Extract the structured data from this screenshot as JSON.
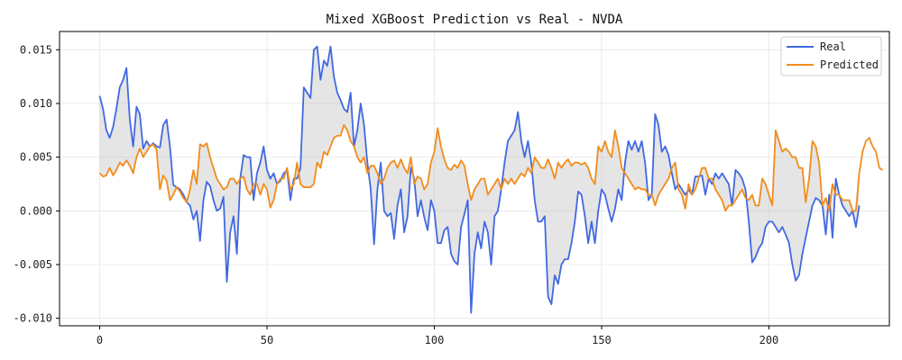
{
  "chart_data": {
    "type": "line",
    "title": "Mixed XGBoost Prediction vs Real - NVDA",
    "xlabel": "",
    "ylabel": "",
    "xlim": [
      -12,
      236
    ],
    "ylim": [
      -0.0107,
      0.0167
    ],
    "x_ticks": [
      0,
      50,
      100,
      150,
      200
    ],
    "y_ticks": [
      -0.01,
      -0.005,
      0.0,
      0.005,
      0.01,
      0.015
    ],
    "y_tick_labels": [
      "-0.010",
      "-0.005",
      "0.000",
      "0.005",
      "0.010",
      "0.015"
    ],
    "grid": true,
    "legend_position": "top-right",
    "fill_between": {
      "color": "#bdbdbd",
      "alpha": 0.4
    },
    "series": [
      {
        "name": "Real",
        "color": "#4169E1",
        "values": [
          0.0107,
          0.0095,
          0.0075,
          0.0068,
          0.0078,
          0.0095,
          0.0115,
          0.0122,
          0.0133,
          0.0085,
          0.006,
          0.0097,
          0.009,
          0.0058,
          0.0065,
          0.006,
          0.0063,
          0.006,
          0.0059,
          0.008,
          0.0085,
          0.006,
          0.0024,
          0.0022,
          0.002,
          0.0015,
          0.0008,
          0.0005,
          -0.0008,
          0.0,
          -0.0028,
          0.001,
          0.0027,
          0.0023,
          0.001,
          0.0,
          0.0002,
          0.0013,
          -0.0066,
          -0.002,
          -0.0005,
          -0.004,
          0.003,
          0.0052,
          0.005,
          0.005,
          0.001,
          0.0035,
          0.0045,
          0.006,
          0.0038,
          0.003,
          0.0035,
          0.0025,
          0.0028,
          0.0035,
          0.0038,
          0.001,
          0.003,
          0.003,
          0.004,
          0.0115,
          0.011,
          0.0105,
          0.015,
          0.0153,
          0.0122,
          0.014,
          0.0135,
          0.0153,
          0.0125,
          0.011,
          0.0103,
          0.0095,
          0.0092,
          0.011,
          0.006,
          0.0075,
          0.01,
          0.008,
          0.0045,
          0.002,
          -0.0031,
          0.002,
          0.0045,
          0.0,
          -0.0005,
          -0.0002,
          -0.0026,
          0.0005,
          0.002,
          -0.002,
          -0.0005,
          0.004,
          0.003,
          -0.0005,
          0.001,
          -0.0006,
          -0.0018,
          0.001,
          0.0,
          -0.003,
          -0.003,
          -0.0018,
          -0.0015,
          -0.004,
          -0.0047,
          -0.005,
          -0.0015,
          -0.0003,
          0.001,
          -0.0095,
          -0.004,
          -0.002,
          -0.0035,
          -0.001,
          -0.002,
          -0.005,
          -0.0005,
          0.0,
          0.002,
          0.0045,
          0.0065,
          0.007,
          0.0075,
          0.0092,
          0.0065,
          0.005,
          0.0065,
          0.0045,
          0.001,
          -0.001,
          -0.001,
          -0.0005,
          -0.008,
          -0.0087,
          -0.006,
          -0.0068,
          -0.005,
          -0.0045,
          -0.0045,
          -0.003,
          -0.001,
          0.0018,
          0.0015,
          -0.0005,
          -0.003,
          -0.001,
          -0.003,
          0.0,
          0.002,
          0.0015,
          0.0002,
          -0.001,
          0.0002,
          0.002,
          0.001,
          0.0045,
          0.0065,
          0.0057,
          0.0065,
          0.0055,
          0.0065,
          0.0045,
          0.001,
          0.0015,
          0.009,
          0.008,
          0.0055,
          0.006,
          0.0052,
          0.0035,
          0.002,
          0.0025,
          0.002,
          0.0015,
          0.002,
          0.0015,
          0.0032,
          0.0032,
          0.0033,
          0.0015,
          0.003,
          0.0025,
          0.0035,
          0.003,
          0.0035,
          0.003,
          0.0025,
          0.0005,
          0.0038,
          0.0035,
          0.003,
          0.002,
          -0.001,
          -0.0048,
          -0.0043,
          -0.0035,
          -0.003,
          -0.0015,
          -0.001,
          -0.001,
          -0.0015,
          -0.002,
          -0.0015,
          -0.0022,
          -0.003,
          -0.005,
          -0.0065,
          -0.006,
          -0.004,
          -0.0025,
          -0.001,
          0.0005,
          0.0012,
          0.001,
          0.0005,
          -0.0022,
          0.0015,
          -0.0025,
          0.003,
          0.0015,
          0.0005,
          0.0,
          -0.0005,
          0.0,
          -0.0015,
          0.0005
        ]
      },
      {
        "name": "Predicted",
        "color": "#F28C1B",
        "values": [
          0.0035,
          0.0032,
          0.0033,
          0.004,
          0.0033,
          0.0038,
          0.0045,
          0.0042,
          0.0047,
          0.0042,
          0.0035,
          0.005,
          0.0058,
          0.005,
          0.0055,
          0.006,
          0.0062,
          0.0057,
          0.002,
          0.0033,
          0.0028,
          0.001,
          0.0015,
          0.0022,
          0.0018,
          0.0012,
          0.0008,
          0.002,
          0.0038,
          0.0025,
          0.0062,
          0.006,
          0.0063,
          0.005,
          0.004,
          0.003,
          0.0025,
          0.002,
          0.0022,
          0.003,
          0.003,
          0.0025,
          0.003,
          0.0032,
          0.002,
          0.0015,
          0.0025,
          0.0025,
          0.0015,
          0.0025,
          0.002,
          0.0003,
          0.001,
          0.0025,
          0.003,
          0.003,
          0.004,
          0.002,
          0.0025,
          0.0045,
          0.0025,
          0.0022,
          0.0022,
          0.0022,
          0.0025,
          0.0045,
          0.004,
          0.0055,
          0.0052,
          0.006,
          0.0068,
          0.007,
          0.007,
          0.008,
          0.0075,
          0.0065,
          0.006,
          0.005,
          0.0045,
          0.005,
          0.0035,
          0.0042,
          0.0042,
          0.0035,
          0.0025,
          0.003,
          0.004,
          0.0045,
          0.0047,
          0.004,
          0.0048,
          0.004,
          0.0035,
          0.005,
          0.0025,
          0.0032,
          0.003,
          0.002,
          0.0025,
          0.0045,
          0.0055,
          0.0077,
          0.006,
          0.0048,
          0.004,
          0.0038,
          0.0043,
          0.004,
          0.0047,
          0.0042,
          0.0025,
          0.001,
          0.002,
          0.0025,
          0.003,
          0.003,
          0.0015,
          0.002,
          0.0025,
          0.003,
          0.002,
          0.003,
          0.0025,
          0.003,
          0.0025,
          0.003,
          0.0035,
          0.0032,
          0.004,
          0.0035,
          0.005,
          0.0045,
          0.004,
          0.004,
          0.0048,
          0.004,
          0.003,
          0.0045,
          0.004,
          0.0045,
          0.0048,
          0.0042,
          0.0045,
          0.0045,
          0.0043,
          0.0045,
          0.004,
          0.003,
          0.0025,
          0.006,
          0.0055,
          0.0065,
          0.0055,
          0.005,
          0.0075,
          0.006,
          0.004,
          0.0035,
          0.003,
          0.0025,
          0.002,
          0.0022,
          0.002,
          0.002,
          0.0015,
          0.0015,
          0.0005,
          0.0015,
          0.002,
          0.0025,
          0.003,
          0.004,
          0.0045,
          0.002,
          0.0015,
          0.0002,
          0.0025,
          0.0015,
          0.002,
          0.003,
          0.004,
          0.004,
          0.003,
          0.003,
          0.002,
          0.0015,
          0.001,
          0.0,
          0.0005,
          0.0005,
          0.001,
          0.0015,
          0.002,
          0.0012,
          0.001,
          0.0015,
          0.0005,
          0.0005,
          0.003,
          0.0025,
          0.0015,
          0.0005,
          0.0075,
          0.0065,
          0.0055,
          0.0058,
          0.0055,
          0.005,
          0.005,
          0.004,
          0.004,
          0.0008,
          0.003,
          0.0065,
          0.006,
          0.0045,
          0.0005,
          0.0012,
          0.0,
          0.0025,
          0.0015,
          0.0015,
          0.001,
          0.001,
          0.001,
          0.0,
          0.0,
          0.0035,
          0.0055,
          0.0065,
          0.0068,
          0.006,
          0.0055,
          0.004,
          0.0038
        ]
      }
    ]
  }
}
